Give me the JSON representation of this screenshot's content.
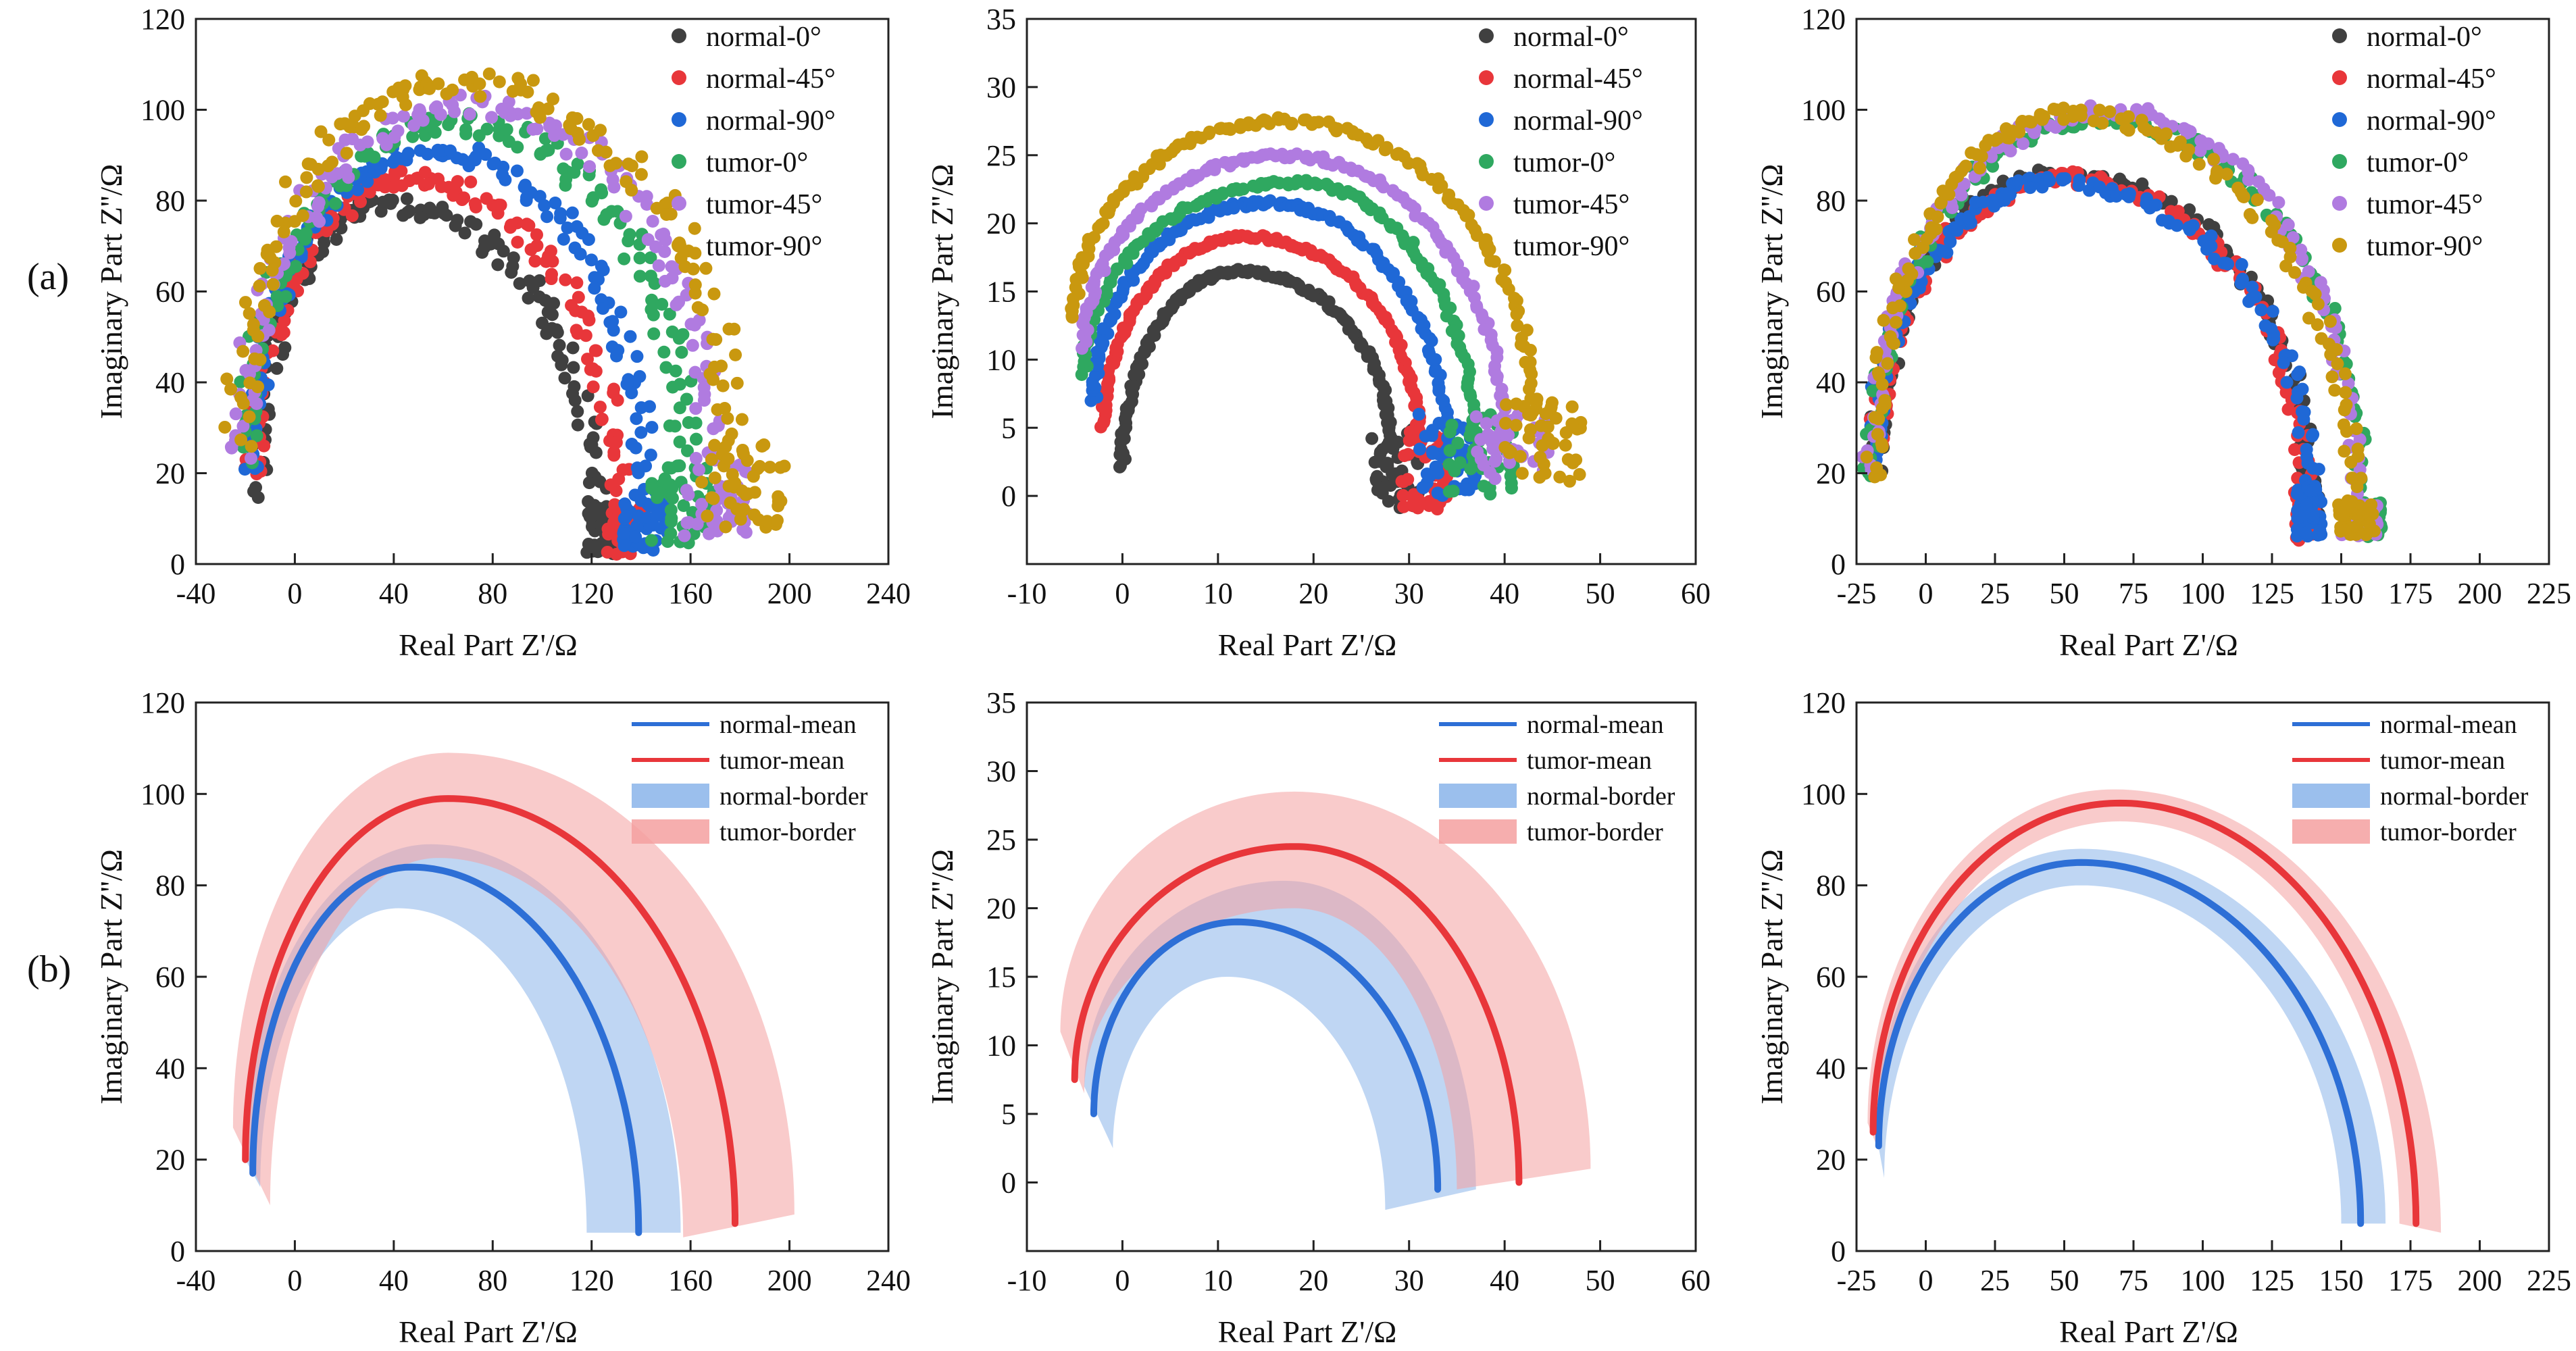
{
  "row_labels": [
    "(a)",
    "(b)"
  ],
  "colors": {
    "normal_0": "#404040",
    "normal_45": "#e8363a",
    "normal_90": "#1f68d6",
    "tumor_0": "#2fa860",
    "tumor_45": "#b07be0",
    "tumor_90": "#c9980f",
    "mean_blue": "#2d6fd6",
    "mean_red": "#e8363a",
    "band_blue": "#8ab4ea",
    "band_red": "#f4a0a0"
  },
  "chart_data": [
    {
      "id": "a1",
      "type": "scatter",
      "xlabel": "Real Part Z'/Ω",
      "ylabel": "Imaginary Part Z''/Ω",
      "xlim": [
        -40,
        240
      ],
      "ylim": [
        0,
        120
      ],
      "xticks": [
        -40,
        0,
        40,
        80,
        120,
        160,
        200,
        240
      ],
      "yticks": [
        0,
        20,
        40,
        60,
        80,
        100,
        120
      ],
      "legend_position": "top-right",
      "series": [
        {
          "name": "normal-0°",
          "color_key": "normal_0",
          "arc": {
            "start": [
              -16,
              16
            ],
            "peak": [
              35,
              79
            ],
            "end_top": [
              122,
              12
            ],
            "cluster": [
              [
                118,
                2
              ],
              [
                132,
                13
              ]
            ],
            "jitter": 2.0
          }
        },
        {
          "name": "normal-45°",
          "color_key": "normal_45",
          "arc": {
            "start": [
              -17,
              18
            ],
            "peak": [
              45,
              85
            ],
            "end_top": [
              132,
              12
            ],
            "cluster": [
              [
                126,
                2
              ],
              [
                142,
                13
              ]
            ],
            "jitter": 2.0
          }
        },
        {
          "name": "normal-90°",
          "color_key": "normal_90",
          "arc": {
            "start": [
              -18,
              20
            ],
            "peak": [
              55,
              91
            ],
            "end_top": [
              142,
              14
            ],
            "cluster": [
              [
                132,
                3
              ],
              [
                152,
                14
              ]
            ],
            "jitter": 2.0
          }
        },
        {
          "name": "tumor-0°",
          "color_key": "tumor_0",
          "arc": {
            "start": [
              -20,
              22
            ],
            "peak": [
              65,
              97
            ],
            "end_top": [
              158,
              20
            ],
            "cluster": [
              [
                144,
                4
              ],
              [
                170,
                22
              ]
            ],
            "jitter": 2.5
          }
        },
        {
          "name": "tumor-45°",
          "color_key": "tumor_45",
          "arc": {
            "start": [
              -21,
              24
            ],
            "peak": [
              70,
              101
            ],
            "end_top": [
              168,
              22
            ],
            "cluster": [
              [
                156,
                6
              ],
              [
                184,
                24
              ]
            ],
            "jitter": 2.5
          }
        },
        {
          "name": "tumor-90°",
          "color_key": "tumor_90",
          "arc": {
            "start": [
              -22,
              28
            ],
            "peak": [
              65,
              106
            ],
            "end_top": [
              176,
              26
            ],
            "cluster": [
              [
                164,
                8
              ],
              [
                198,
                27
              ]
            ],
            "jitter": 3.0
          }
        }
      ]
    },
    {
      "id": "a2",
      "type": "scatter",
      "xlabel": "Real Part Z'/Ω",
      "ylabel": "Imaginary Part Z''/Ω",
      "xlim": [
        -10,
        60
      ],
      "ylim": [
        -5,
        35
      ],
      "xticks": [
        -10,
        0,
        10,
        20,
        30,
        40,
        50,
        60
      ],
      "yticks": [
        0,
        5,
        10,
        15,
        20,
        25,
        30,
        35
      ],
      "legend_position": "top-right",
      "series": [
        {
          "name": "normal-0°",
          "color_key": "normal_0",
          "arc": {
            "start": [
              0,
              2
            ],
            "peak": [
              12,
              16.5
            ],
            "end_top": [
              28,
              4
            ],
            "cluster": [
              [
                26,
                -1
              ],
              [
                31,
                5
              ]
            ],
            "jitter": 0.5
          }
        },
        {
          "name": "normal-45°",
          "color_key": "normal_45",
          "arc": {
            "start": [
              -2,
              5
            ],
            "peak": [
              13,
              19
            ],
            "end_top": [
              31,
              4
            ],
            "cluster": [
              [
                29,
                -1
              ],
              [
                34,
                5
              ]
            ],
            "jitter": 0.5
          }
        },
        {
          "name": "normal-90°",
          "color_key": "normal_90",
          "arc": {
            "start": [
              -3,
              7
            ],
            "peak": [
              15,
              21.5
            ],
            "end_top": [
              34,
              3
            ],
            "cluster": [
              [
                31,
                0
              ],
              [
                37,
                6
              ]
            ],
            "jitter": 0.6
          }
        },
        {
          "name": "tumor-0°",
          "color_key": "tumor_0",
          "arc": {
            "start": [
              -4,
              9
            ],
            "peak": [
              18,
              23
            ],
            "end_top": [
              37,
              3
            ],
            "cluster": [
              [
                34,
                0
              ],
              [
                41,
                6
              ]
            ],
            "jitter": 0.6
          }
        },
        {
          "name": "tumor-45°",
          "color_key": "tumor_45",
          "arc": {
            "start": [
              -4,
              11
            ],
            "peak": [
              17,
              25
            ],
            "end_top": [
              40,
              4
            ],
            "cluster": [
              [
                37,
                1
              ],
              [
                45,
                6
              ]
            ],
            "jitter": 0.6
          }
        },
        {
          "name": "tumor-90°",
          "color_key": "tumor_90",
          "arc": {
            "start": [
              -5,
              13
            ],
            "peak": [
              17,
              27.5
            ],
            "end_top": [
              43,
              6
            ],
            "cluster": [
              [
                40,
                1
              ],
              [
                48,
                7
              ]
            ],
            "jitter": 0.8
          }
        }
      ]
    },
    {
      "id": "a3",
      "type": "scatter",
      "xlabel": "Real Part Z'/Ω",
      "ylabel": "Imaginary Part Z''/Ω",
      "xlim": [
        -25,
        225
      ],
      "ylim": [
        0,
        120
      ],
      "xticks": [
        -25,
        0,
        25,
        50,
        75,
        100,
        125,
        150,
        175,
        200,
        225
      ],
      "yticks": [
        0,
        20,
        40,
        60,
        80,
        100,
        120
      ],
      "legend_position": "top-right",
      "series": [
        {
          "name": "normal-0°",
          "color_key": "normal_0",
          "arc": {
            "start": [
              -18,
              20
            ],
            "peak": [
              48,
              86
            ],
            "end_top": [
              138,
              16
            ],
            "cluster": [
              [
                134,
                6
              ],
              [
                142,
                17
              ]
            ],
            "jitter": 1.5
          }
        },
        {
          "name": "normal-45°",
          "color_key": "normal_45",
          "arc": {
            "start": [
              -18,
              21
            ],
            "peak": [
              50,
              85
            ],
            "end_top": [
              137,
              15
            ],
            "cluster": [
              [
                133,
                5
              ],
              [
                141,
                16
              ]
            ],
            "jitter": 1.5
          }
        },
        {
          "name": "normal-90°",
          "color_key": "normal_90",
          "arc": {
            "start": [
              -19,
              22
            ],
            "peak": [
              46,
              84
            ],
            "end_top": [
              139,
              16
            ],
            "cluster": [
              [
                134,
                6
              ],
              [
                143,
                17
              ]
            ],
            "jitter": 1.5
          }
        },
        {
          "name": "tumor-0°",
          "color_key": "tumor_0",
          "arc": {
            "start": [
              -20,
              18
            ],
            "peak": [
              62,
              98
            ],
            "end_top": [
              158,
              12
            ],
            "cluster": [
              [
                152,
                6
              ],
              [
                165,
                14
              ]
            ],
            "jitter": 1.5
          }
        },
        {
          "name": "tumor-45°",
          "color_key": "tumor_45",
          "arc": {
            "start": [
              -20,
              20
            ],
            "peak": [
              65,
              100
            ],
            "end_top": [
              156,
              12
            ],
            "cluster": [
              [
                150,
                6
              ],
              [
                163,
                14
              ]
            ],
            "jitter": 1.5
          }
        },
        {
          "name": "tumor-90°",
          "color_key": "tumor_90",
          "arc": {
            "start": [
              -19,
              19
            ],
            "peak": [
              52,
              99
            ],
            "end_top": [
              155,
              12
            ],
            "cluster": [
              [
                149,
                6
              ],
              [
                162,
                14
              ]
            ],
            "jitter": 1.5
          }
        }
      ]
    },
    {
      "id": "b1",
      "type": "line",
      "xlabel": "Real Part Z'/Ω",
      "ylabel": "Imaginary Part Z''/Ω",
      "xlim": [
        -40,
        240
      ],
      "ylim": [
        0,
        120
      ],
      "xticks": [
        -40,
        0,
        40,
        80,
        120,
        160,
        200,
        240
      ],
      "yticks": [
        0,
        20,
        40,
        60,
        80,
        100,
        120
      ],
      "legend_position": "top-right",
      "series": [
        {
          "name": "normal-mean",
          "kind": "line",
          "color_key": "mean_blue",
          "start": [
            -17,
            17
          ],
          "peak": [
            47,
            84
          ],
          "end": [
            139,
            4
          ]
        },
        {
          "name": "tumor-mean",
          "kind": "line",
          "color_key": "mean_red",
          "start": [
            -20,
            20
          ],
          "peak": [
            62,
            99
          ],
          "end": [
            178,
            6
          ]
        },
        {
          "name": "normal-border",
          "kind": "band",
          "color_key": "band_blue",
          "outer": {
            "start": [
              -20,
              20
            ],
            "peak": [
              55,
              89
            ],
            "end": [
              156,
              4
            ]
          },
          "inner": {
            "start": [
              -14,
              14
            ],
            "peak": [
              42,
              75
            ],
            "end": [
              118,
              4
            ]
          }
        },
        {
          "name": "tumor-border",
          "kind": "band",
          "color_key": "band_red",
          "outer": {
            "start": [
              -25,
              27
            ],
            "peak": [
              62,
              109
            ],
            "end": [
              202,
              8
            ]
          },
          "inner": {
            "start": [
              -10,
              10
            ],
            "peak": [
              58,
              86
            ],
            "end": [
              157,
              3
            ]
          }
        }
      ]
    },
    {
      "id": "b2",
      "type": "line",
      "xlabel": "Real Part Z'/Ω",
      "ylabel": "Imaginary Part Z''/Ω",
      "xlim": [
        -10,
        60
      ],
      "ylim": [
        -5,
        35
      ],
      "xticks": [
        -10,
        0,
        10,
        20,
        30,
        40,
        50,
        60
      ],
      "yticks": [
        0,
        5,
        10,
        15,
        20,
        25,
        30,
        35
      ],
      "legend_position": "top-right",
      "series": [
        {
          "name": "normal-mean",
          "kind": "line",
          "color_key": "mean_blue",
          "start": [
            -3,
            5
          ],
          "peak": [
            12,
            19
          ],
          "end": [
            33,
            -0.5
          ]
        },
        {
          "name": "tumor-mean",
          "kind": "line",
          "color_key": "mean_red",
          "start": [
            -5,
            7.5
          ],
          "peak": [
            18,
            24.5
          ],
          "end": [
            41.5,
            0
          ]
        },
        {
          "name": "normal-border",
          "kind": "band",
          "color_key": "band_blue",
          "outer": {
            "start": [
              -4,
              7
            ],
            "peak": [
              17,
              22
            ],
            "end": [
              37,
              -0.5
            ]
          },
          "inner": {
            "start": [
              -1,
              2.5
            ],
            "peak": [
              11,
              15
            ],
            "end": [
              27.5,
              -2
            ]
          }
        },
        {
          "name": "tumor-border",
          "kind": "band",
          "color_key": "band_red",
          "outer": {
            "start": [
              -6.5,
              11
            ],
            "peak": [
              18,
              28.5
            ],
            "end": [
              49,
              1
            ]
          },
          "inner": {
            "start": [
              -4,
              6.5
            ],
            "peak": [
              18,
              20
            ],
            "end": [
              35,
              -0.5
            ]
          }
        }
      ]
    },
    {
      "id": "b3",
      "type": "line",
      "xlabel": "Real Part Z'/Ω",
      "ylabel": "Imaginary Part Z''/Ω",
      "xlim": [
        -25,
        225
      ],
      "ylim": [
        0,
        120
      ],
      "xticks": [
        -25,
        0,
        25,
        50,
        75,
        100,
        125,
        150,
        175,
        200,
        225
      ],
      "yticks": [
        0,
        20,
        40,
        60,
        80,
        100,
        120
      ],
      "legend_position": "top-right",
      "series": [
        {
          "name": "normal-mean",
          "kind": "line",
          "color_key": "mean_blue",
          "start": [
            -17,
            23
          ],
          "peak": [
            56,
            85
          ],
          "end": [
            157,
            6
          ]
        },
        {
          "name": "tumor-mean",
          "kind": "line",
          "color_key": "mean_red",
          "start": [
            -19,
            26
          ],
          "peak": [
            70,
            98
          ],
          "end": [
            177,
            6
          ]
        },
        {
          "name": "normal-border",
          "kind": "band",
          "color_key": "band_blue",
          "outer": {
            "start": [
              -18,
              26
            ],
            "peak": [
              56,
              88
            ],
            "end": [
              166,
              6
            ]
          },
          "inner": {
            "start": [
              -15,
              16
            ],
            "peak": [
              56,
              80
            ],
            "end": [
              150,
              6
            ]
          }
        },
        {
          "name": "tumor-border",
          "kind": "band",
          "color_key": "band_red",
          "outer": {
            "start": [
              -21,
              28
            ],
            "peak": [
              68,
              101
            ],
            "end": [
              186,
              4
            ]
          },
          "inner": {
            "start": [
              -17,
              22
            ],
            "peak": [
              70,
              94
            ],
            "end": [
              171,
              6
            ]
          }
        }
      ]
    }
  ]
}
